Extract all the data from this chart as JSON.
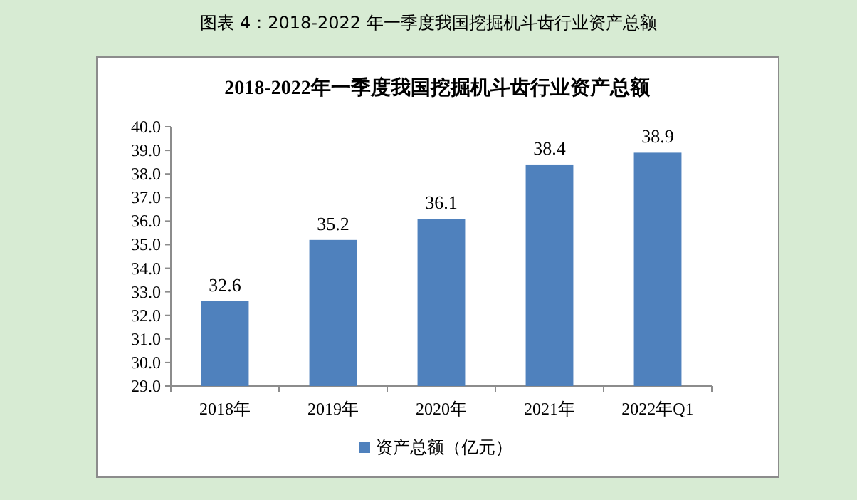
{
  "chart_data": {
    "type": "bar",
    "title": "2018-2022年一季度我国挖掘机斗齿行业资产总额",
    "annotations": [
      "图表 4：2018-2022 年一季度我国挖掘机斗齿行业资产总额"
    ],
    "categories": [
      "2018年",
      "2019年",
      "2020年",
      "2021年",
      "2022年Q1"
    ],
    "series": [
      {
        "name": "资产总额（亿元）",
        "color": "#4f81bd",
        "values": [
          32.6,
          35.2,
          36.1,
          38.4,
          38.9
        ]
      }
    ],
    "ylim": [
      29,
      40
    ],
    "yticks": [
      {
        "value": 29,
        "label": "29.0"
      },
      {
        "value": 30,
        "label": "30.0"
      },
      {
        "value": 31,
        "label": "31.0"
      },
      {
        "value": 32,
        "label": "32.0"
      },
      {
        "value": 33,
        "label": "33.0"
      },
      {
        "value": 34,
        "label": "34.0"
      },
      {
        "value": 35,
        "label": "35.0"
      },
      {
        "value": 36,
        "label": "36.0"
      },
      {
        "value": 37,
        "label": "37.0"
      },
      {
        "value": 38,
        "label": "38.0"
      },
      {
        "value": 39,
        "label": "39.0"
      },
      {
        "value": 40,
        "label": "40.0"
      }
    ],
    "data_labels": true,
    "legend": "bottom",
    "grid": false
  }
}
